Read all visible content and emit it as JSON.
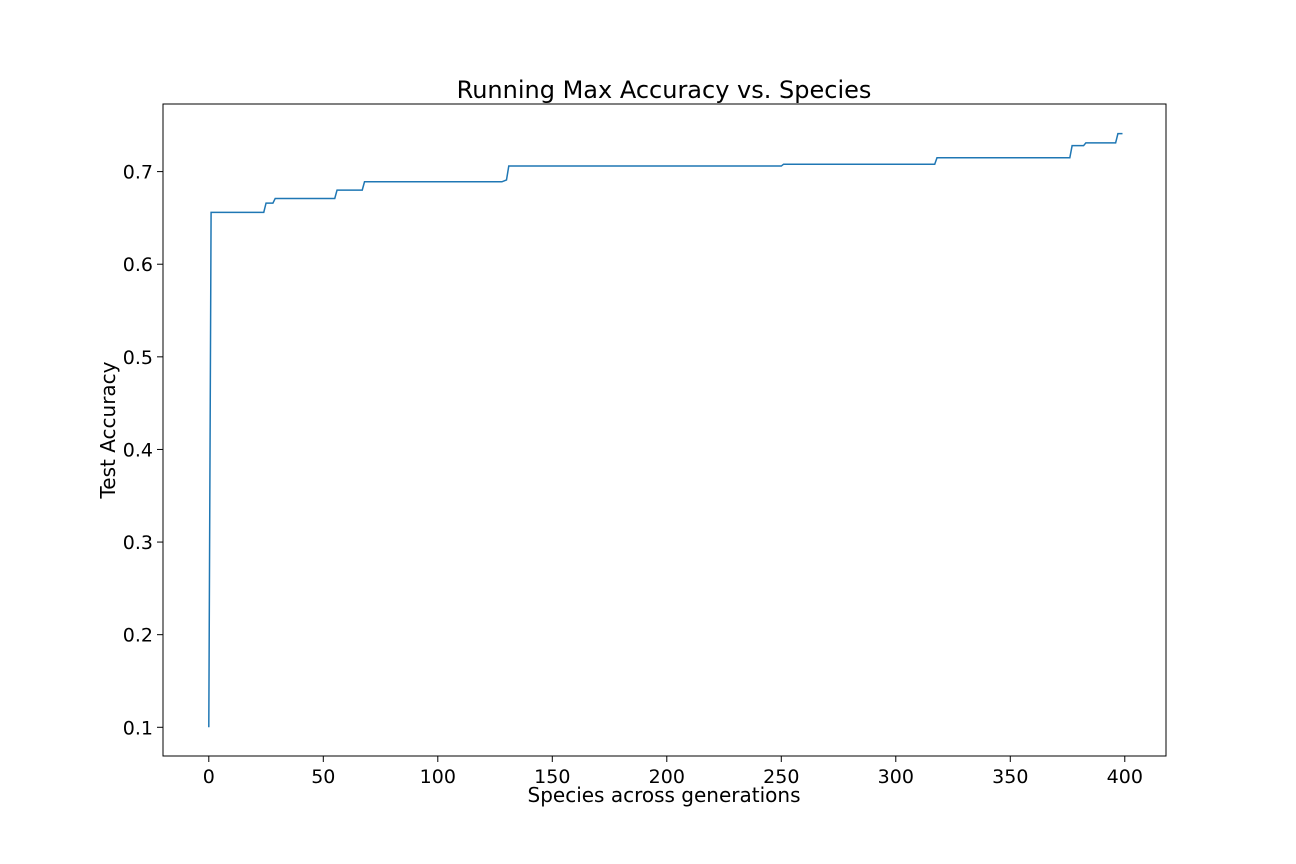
{
  "chart_data": {
    "type": "line",
    "title": "Running Max Accuracy vs. Species",
    "xlabel": "Species across generations",
    "ylabel": "Test Accuracy",
    "xlim": [
      -20,
      418
    ],
    "ylim": [
      0.069,
      0.773
    ],
    "xticks": [
      0,
      50,
      100,
      150,
      200,
      250,
      300,
      350,
      400
    ],
    "yticks": [
      0.1,
      0.2,
      0.3,
      0.4,
      0.5,
      0.6,
      0.7
    ],
    "xtick_labels": [
      "0",
      "50",
      "100",
      "150",
      "200",
      "250",
      "300",
      "350",
      "400"
    ],
    "ytick_labels": [
      "0.1",
      "0.2",
      "0.3",
      "0.4",
      "0.5",
      "0.6",
      "0.7"
    ],
    "grid": false,
    "color": "#1f77b4",
    "series": [
      {
        "x": [
          0,
          1,
          24,
          25,
          28,
          29,
          55,
          56,
          67,
          68,
          128,
          130,
          131,
          250,
          251,
          317,
          318,
          376,
          377,
          382,
          383,
          396,
          397,
          399
        ],
        "y": [
          0.1,
          0.656,
          0.656,
          0.666,
          0.666,
          0.671,
          0.671,
          0.68,
          0.68,
          0.689,
          0.689,
          0.691,
          0.706,
          0.706,
          0.708,
          0.708,
          0.715,
          0.715,
          0.728,
          0.728,
          0.731,
          0.731,
          0.741,
          0.741
        ]
      }
    ]
  }
}
